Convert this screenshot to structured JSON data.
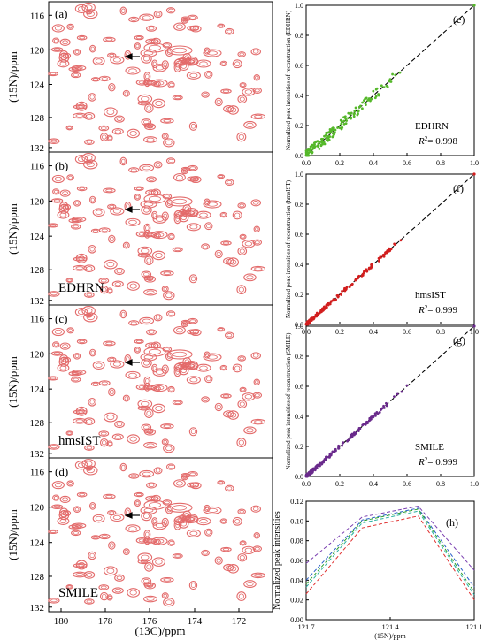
{
  "colors": {
    "peak": "#e36a6a",
    "edhrn": "#55b82a",
    "hmsist": "#d21e1e",
    "smile": "#6a2a8c",
    "line1": "#7a3fb0",
    "line2": "#2a60c8",
    "line3": "#2aa02a",
    "line4": "#2ab0a0",
    "line5": "#e03030"
  },
  "spectra": {
    "ylabel": "(15N)/ppm",
    "xlabel": "(13C)/ppm",
    "yticks": [
      "116",
      "120",
      "124",
      "128",
      "132"
    ],
    "xticks": [
      "180",
      "178",
      "176",
      "174",
      "172"
    ],
    "panels": [
      {
        "tag": "(a)",
        "label": ""
      },
      {
        "tag": "(b)",
        "label": "EDHRN"
      },
      {
        "tag": "(c)",
        "label": "hmsIST"
      },
      {
        "tag": "(d)",
        "label": "SMILE"
      }
    ]
  },
  "chart_data": [
    {
      "type": "scatter",
      "panel": "(e)",
      "method": "EDHRN",
      "r2_text": "= 0.998",
      "ylabel": "Normalized peak intensities of reconstruction (EDHRN)",
      "xlim": [
        0,
        1.0
      ],
      "ylim": [
        0,
        1.0
      ],
      "xticks": [
        "0.0",
        "0.2",
        "0.4",
        "0.6",
        "0.8",
        "1.0"
      ],
      "yticks": [
        "0.0",
        "0.2",
        "0.4",
        "0.6",
        "0.8",
        "1.0"
      ],
      "reference_line": "y = x (dashed)"
    },
    {
      "type": "scatter",
      "panel": "(f)",
      "method": "hmsIST",
      "r2_text": "= 0.999",
      "ylabel": "Normalized peak intensities of reconstruction (hmsIST)",
      "xlim": [
        0,
        1.0
      ],
      "ylim": [
        0,
        1.0
      ],
      "xticks": [
        "0.0",
        "0.2",
        "0.4",
        "0.6",
        "0.8",
        "1.0"
      ],
      "yticks": [
        "0.0",
        "0.2",
        "0.4",
        "0.6",
        "0.8",
        "1.0"
      ],
      "reference_line": "y = x (dashed)"
    },
    {
      "type": "scatter",
      "panel": "(g)",
      "method": "SMILE",
      "r2_text": "= 0.999",
      "ylabel": "Normalized peak intensities of reconstruction (SMILE)",
      "xlim": [
        0,
        1.0
      ],
      "ylim": [
        0,
        1.0
      ],
      "xticks": [
        "0.0",
        "0.2",
        "0.4",
        "0.6",
        "0.8",
        "1.0"
      ],
      "yticks": [
        "0.0",
        "0.2",
        "0.4",
        "0.6",
        "0.8",
        "1.0"
      ],
      "reference_line": "y = x (dashed)"
    },
    {
      "type": "line",
      "panel": "(h)",
      "ylabel": "Normalized peak intensities",
      "xlabel": "(15N)/ppm",
      "xlim": [
        121.7,
        121.1
      ],
      "ylim": [
        0,
        0.12
      ],
      "xticks": [
        "121.7",
        "121.4",
        "121.1"
      ],
      "yticks": [
        "0.00",
        "0.02",
        "0.04",
        "0.06",
        "0.08",
        "0.10",
        "0.12"
      ],
      "x": [
        121.7,
        121.5,
        121.3,
        121.1
      ],
      "series": [
        {
          "values": [
            0.057,
            0.104,
            0.115,
            0.05
          ]
        },
        {
          "values": [
            0.04,
            0.101,
            0.113,
            0.033
          ]
        },
        {
          "values": [
            0.036,
            0.1,
            0.112,
            0.028
          ]
        },
        {
          "values": [
            0.033,
            0.098,
            0.11,
            0.025
          ]
        },
        {
          "values": [
            0.026,
            0.093,
            0.105,
            0.02
          ]
        }
      ]
    }
  ]
}
